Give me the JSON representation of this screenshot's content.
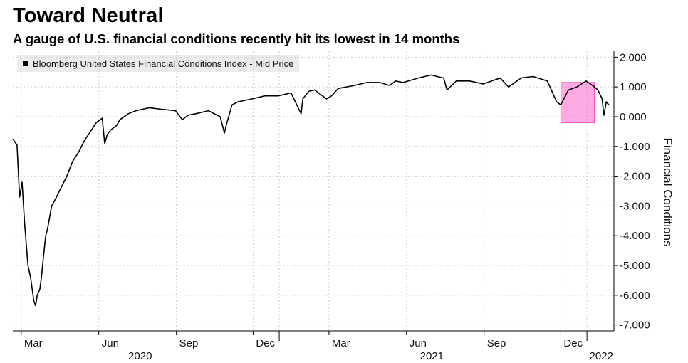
{
  "chart_data": {
    "type": "line",
    "title": "Toward Neutral",
    "subtitle": "A gauge of U.S. financial conditions recently hit its lowest in 14 months",
    "ylabel": "Financial Conditions",
    "ylim": [
      -7.2,
      2.2
    ],
    "y_ticks": [
      "2.000",
      "1.000",
      "0.000",
      "-1.000",
      "-2.000",
      "-3.000",
      "-4.000",
      "-5.000",
      "-6.000",
      "-7.000"
    ],
    "y_tick_values": [
      2,
      1,
      0,
      -1,
      -2,
      -3,
      -4,
      -5,
      -6,
      -7
    ],
    "x_ticks": [
      "Mar",
      "Jun",
      "Sep",
      "Dec",
      "Mar",
      "Jun",
      "Sep",
      "Dec"
    ],
    "x_years": [
      "2020",
      "2021",
      "2022"
    ],
    "grid": true,
    "legend_position": "top-left",
    "highlight": {
      "color": "#ff66cc",
      "x_range": [
        "2021-12-01",
        "2022-01-10"
      ],
      "y_range": [
        -0.2,
        1.15
      ]
    },
    "series": [
      {
        "name": "Bloomberg United States Financial Conditions Index - Mid Price",
        "color": "#000000",
        "x": [
          "2020-02-20",
          "2020-02-25",
          "2020-02-28",
          "2020-03-02",
          "2020-03-05",
          "2020-03-09",
          "2020-03-12",
          "2020-03-16",
          "2020-03-18",
          "2020-03-20",
          "2020-03-23",
          "2020-03-25",
          "2020-03-27",
          "2020-03-30",
          "2020-04-01",
          "2020-04-06",
          "2020-04-10",
          "2020-04-17",
          "2020-04-24",
          "2020-05-01",
          "2020-05-08",
          "2020-05-15",
          "2020-05-22",
          "2020-05-29",
          "2020-06-05",
          "2020-06-08",
          "2020-06-11",
          "2020-06-15",
          "2020-06-22",
          "2020-06-26",
          "2020-07-06",
          "2020-07-15",
          "2020-07-31",
          "2020-08-14",
          "2020-08-31",
          "2020-09-04",
          "2020-09-08",
          "2020-09-15",
          "2020-09-24",
          "2020-10-09",
          "2020-10-23",
          "2020-10-28",
          "2020-10-30",
          "2020-11-06",
          "2020-11-13",
          "2020-11-30",
          "2020-12-15",
          "2020-12-31",
          "2021-01-15",
          "2021-01-27",
          "2021-01-29",
          "2021-02-05",
          "2021-02-12",
          "2021-02-26",
          "2021-03-04",
          "2021-03-12",
          "2021-03-31",
          "2021-04-15",
          "2021-04-30",
          "2021-05-12",
          "2021-05-19",
          "2021-05-28",
          "2021-06-15",
          "2021-06-30",
          "2021-07-15",
          "2021-07-19",
          "2021-07-30",
          "2021-08-15",
          "2021-08-31",
          "2021-09-20",
          "2021-09-30",
          "2021-10-15",
          "2021-10-29",
          "2021-11-15",
          "2021-11-26",
          "2021-12-01",
          "2021-12-10",
          "2021-12-20",
          "2021-12-31",
          "2022-01-05",
          "2022-01-10",
          "2022-01-14",
          "2022-01-19",
          "2022-01-21",
          "2022-01-24",
          "2022-01-27"
        ],
        "y": [
          -0.75,
          -0.95,
          -2.7,
          -2.2,
          -3.6,
          -5.0,
          -5.4,
          -6.2,
          -6.35,
          -6.0,
          -5.8,
          -5.4,
          -4.8,
          -4.0,
          -3.8,
          -3.0,
          -2.8,
          -2.4,
          -2.0,
          -1.5,
          -1.2,
          -0.8,
          -0.5,
          -0.2,
          -0.05,
          -0.9,
          -0.6,
          -0.45,
          -0.3,
          -0.1,
          0.1,
          0.2,
          0.3,
          0.25,
          0.2,
          0.05,
          -0.1,
          0.05,
          0.1,
          0.2,
          0.0,
          -0.55,
          -0.3,
          0.4,
          0.5,
          0.6,
          0.7,
          0.7,
          0.8,
          0.1,
          0.6,
          0.85,
          0.9,
          0.6,
          0.7,
          0.95,
          1.05,
          1.15,
          1.15,
          1.05,
          1.2,
          1.15,
          1.3,
          1.4,
          1.3,
          0.9,
          1.2,
          1.2,
          1.1,
          1.3,
          1.0,
          1.3,
          1.35,
          1.2,
          0.5,
          0.4,
          0.9,
          1.0,
          1.2,
          1.1,
          1.0,
          0.9,
          0.6,
          0.05,
          0.5,
          0.4
        ]
      }
    ]
  }
}
